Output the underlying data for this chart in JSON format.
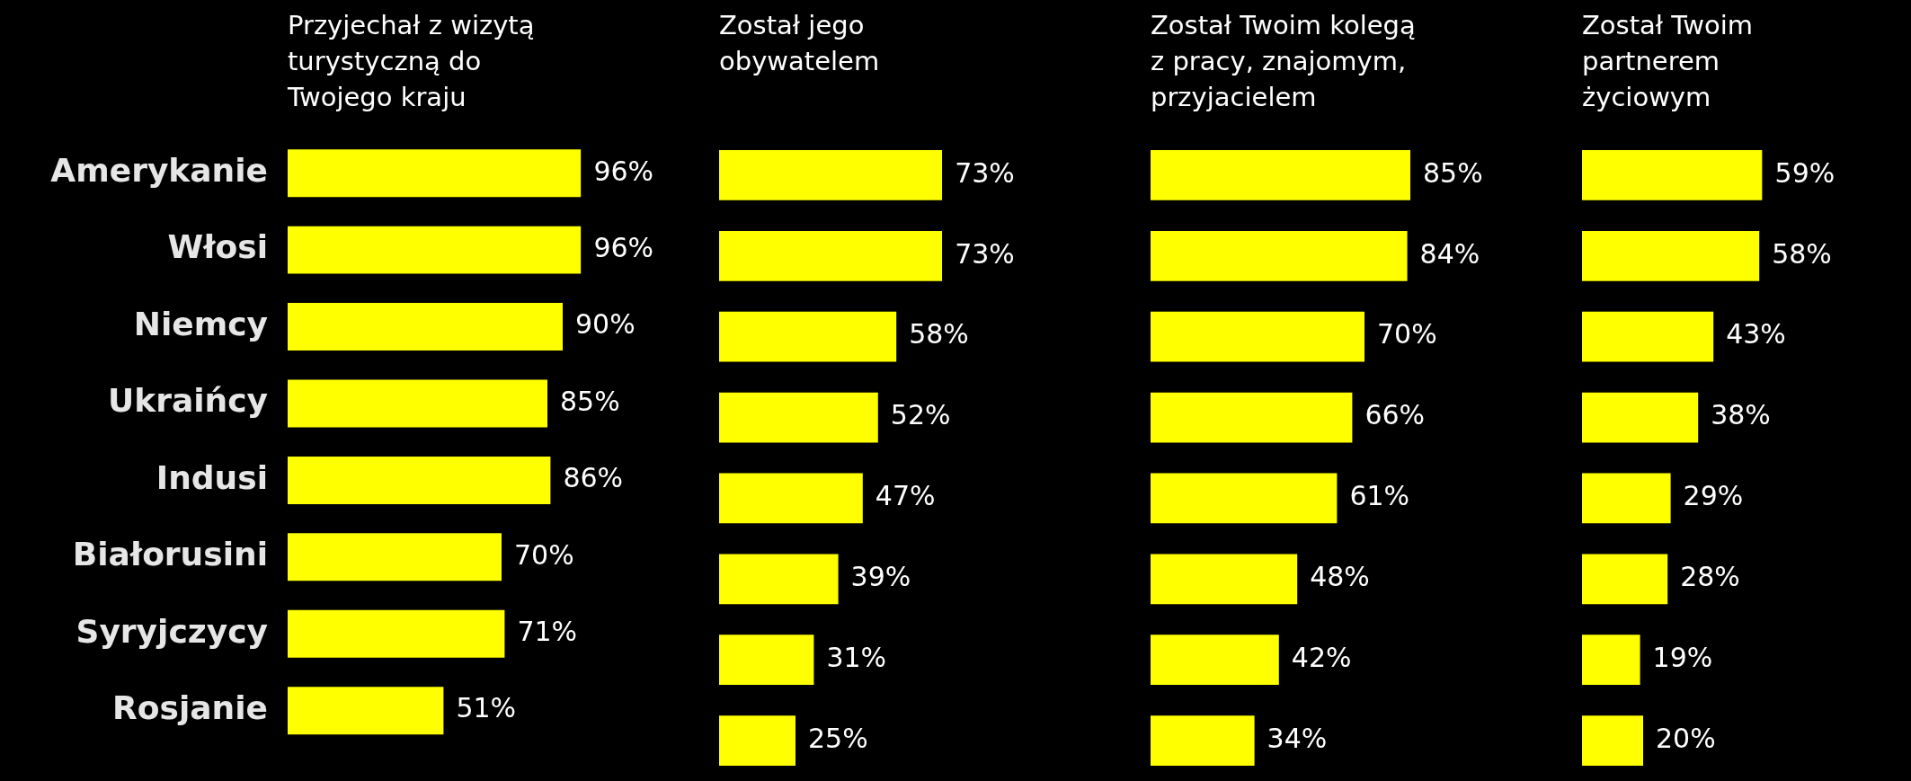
{
  "chart_data": [
    {
      "type": "bar",
      "orientation": "horizontal",
      "title": "Przyjechał z wizytą turystyczną do Twojego kraju",
      "categories": [
        "Amerykanie",
        "Włosi",
        "Niemcy",
        "Ukraińcy",
        "Indusi",
        "Białorusini",
        "Syryjczycy",
        "Rosjanie"
      ],
      "values": [
        96,
        96,
        90,
        85,
        86,
        70,
        71,
        51
      ],
      "value_labels": [
        "96%",
        "96%",
        "90%",
        "85%",
        "86%",
        "70%",
        "71%",
        "51%"
      ],
      "color": "#ffff00",
      "tick_labels": "y"
    },
    {
      "type": "bar",
      "orientation": "horizontal",
      "title": "Został jego obywatelem",
      "categories": [
        null,
        null,
        null,
        null,
        null,
        null,
        null,
        null
      ],
      "values": [
        73,
        73,
        58,
        52,
        47,
        39,
        31,
        25
      ],
      "value_labels": [
        "73%",
        "73%",
        "58%",
        "52%",
        "47%",
        "39%",
        "31%",
        "25%"
      ],
      "color": "#ffff00",
      "tick_labels": false
    },
    {
      "type": "bar",
      "orientation": "horizontal",
      "title": "Został Twoim kolegą z pracy, znajomym, przyjacielem",
      "categories": [
        null,
        null,
        null,
        null,
        null,
        null,
        null,
        null
      ],
      "values": [
        85,
        84,
        70,
        66,
        61,
        48,
        42,
        34
      ],
      "value_labels": [
        "85%",
        "84%",
        "70%",
        "66%",
        "61%",
        "48%",
        "42%",
        "34%"
      ],
      "color": "#ffff00",
      "tick_labels": false
    },
    {
      "type": "bar",
      "orientation": "horizontal",
      "title": "Został Twoim partnerem życiowym",
      "categories": [
        null,
        null,
        null,
        null,
        null,
        null,
        null,
        null
      ],
      "values": [
        59,
        58,
        43,
        38,
        29,
        28,
        19,
        20
      ],
      "value_labels": [
        "59%",
        "58%",
        "43%",
        "38%",
        "29%",
        "28%",
        "19%",
        "20%"
      ],
      "color": "#ffff00",
      "tick_labels": false
    }
  ]
}
